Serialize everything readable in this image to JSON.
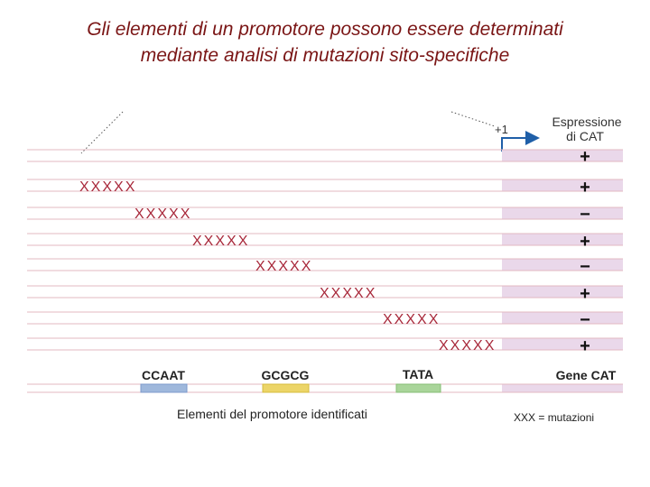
{
  "title": {
    "line1": "Gli elementi di un promotore possono essere determinati",
    "line2": "mediante analisi di mutazioni sito-specifiche"
  },
  "transcription_start_label": "+1",
  "expression_header": {
    "line1": "Espressione",
    "line2": "di CAT"
  },
  "mutation_marker": "XXXXX",
  "constructs": [
    {
      "expression": "+"
    },
    {
      "mutation": "XXXXX",
      "expression": "+"
    },
    {
      "mutation": "XXXXX",
      "expression": "−"
    },
    {
      "mutation": "XXXXX",
      "expression": "+"
    },
    {
      "mutation": "XXXXX",
      "expression": "−"
    },
    {
      "mutation": "XXXXX",
      "expression": "+"
    },
    {
      "mutation": "XXXXX",
      "expression": "−"
    },
    {
      "mutation": "XXXXX",
      "expression": "+"
    }
  ],
  "elements": {
    "ccaat": "CCAAT",
    "gcgcg": "GCGCG",
    "tata": "TATA",
    "gene": "Gene CAT"
  },
  "caption": "Elementi del promotore identificati",
  "legend": "XXX = mutazioni",
  "colors": {
    "title": "#7a1515",
    "dna_line": "#e3b9c2",
    "gene_region": "#ead8ea",
    "mutation": "#a8283a",
    "ccaat_box": "#9fb8dc",
    "gcgcg_box": "#ecd568",
    "tata_box": "#a9d59a",
    "arrow": "#1f5fa8"
  }
}
